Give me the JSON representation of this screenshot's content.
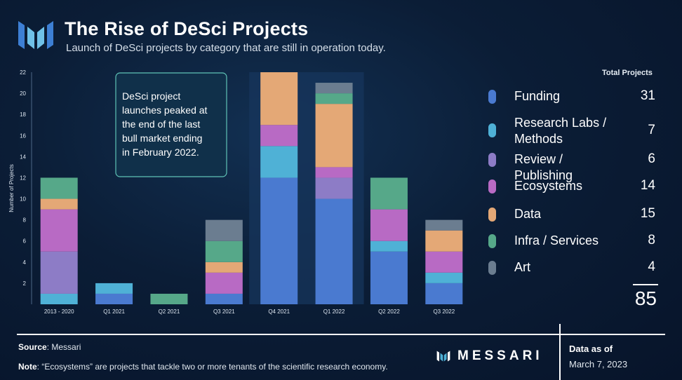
{
  "header": {
    "title": "The Rise of DeSci Projects",
    "subtitle": "Launch of DeSci projects by category that are still in operation today."
  },
  "colors": {
    "Funding": "#4a7ad0",
    "Research Labs / Methods": "#4fb1d6",
    "Review / Publishing": "#8d7cc6",
    "Ecosystems": "#b86ac4",
    "Data": "#e4a876",
    "Infra / Services": "#56a889",
    "Art": "#6b7d90",
    "highlight": "#17365c",
    "annotation_border": "#5fc3b6"
  },
  "chart_data": {
    "type": "bar",
    "stacked": true,
    "categories": [
      "2013 - 2020",
      "Q1 2021",
      "Q2 2021",
      "Q3 2021",
      "Q4 2021",
      "Q1 2022",
      "Q2 2022",
      "Q3 2022"
    ],
    "series": [
      {
        "name": "Funding",
        "values": [
          0,
          1,
          0,
          1,
          12,
          10,
          5,
          2
        ]
      },
      {
        "name": "Research Labs / Methods",
        "values": [
          1,
          1,
          0,
          0,
          3,
          0,
          1,
          1
        ]
      },
      {
        "name": "Review / Publishing",
        "values": [
          4,
          0,
          0,
          0,
          0,
          2,
          0,
          0
        ]
      },
      {
        "name": "Ecosystems",
        "values": [
          4,
          0,
          0,
          2,
          2,
          1,
          3,
          2
        ]
      },
      {
        "name": "Data",
        "values": [
          1,
          0,
          0,
          1,
          5,
          6,
          0,
          2
        ]
      },
      {
        "name": "Infra / Services",
        "values": [
          2,
          0,
          1,
          2,
          0,
          1,
          3,
          0
        ]
      },
      {
        "name": "Art",
        "values": [
          0,
          0,
          0,
          2,
          0,
          1,
          0,
          1
        ]
      }
    ],
    "ylabel": "Number of Projects",
    "ylim": [
      0,
      22
    ],
    "yticks": [
      2,
      4,
      6,
      8,
      10,
      12,
      14,
      16,
      18,
      20,
      22
    ],
    "highlight_categories": [
      "Q4 2021",
      "Q1 2022"
    ],
    "annotation": "DeSci project launches peaked at the end of the last bull market ending in February 2022.",
    "legend_placement": "right"
  },
  "legend": {
    "header": "Total Projects",
    "items": [
      {
        "label": "Funding",
        "value": "31"
      },
      {
        "label": "Research Labs / Methods",
        "value": "7"
      },
      {
        "label": "Review / Publishing",
        "value": "6"
      },
      {
        "label": "Ecosystems",
        "value": "14"
      },
      {
        "label": "Data",
        "value": "15"
      },
      {
        "label": "Infra / Services",
        "value": "8"
      },
      {
        "label": "Art",
        "value": "4"
      }
    ],
    "total": "85"
  },
  "footer": {
    "source_label": "Source",
    "source_text": ": Messari",
    "note_label": "Note",
    "note_text": ": “Ecosystems” are projects that tackle two or more tenants of the scientific research economy.",
    "brand": "MESSARI",
    "as_of_label": "Data as of",
    "as_of_date": "March 7, 2023"
  }
}
